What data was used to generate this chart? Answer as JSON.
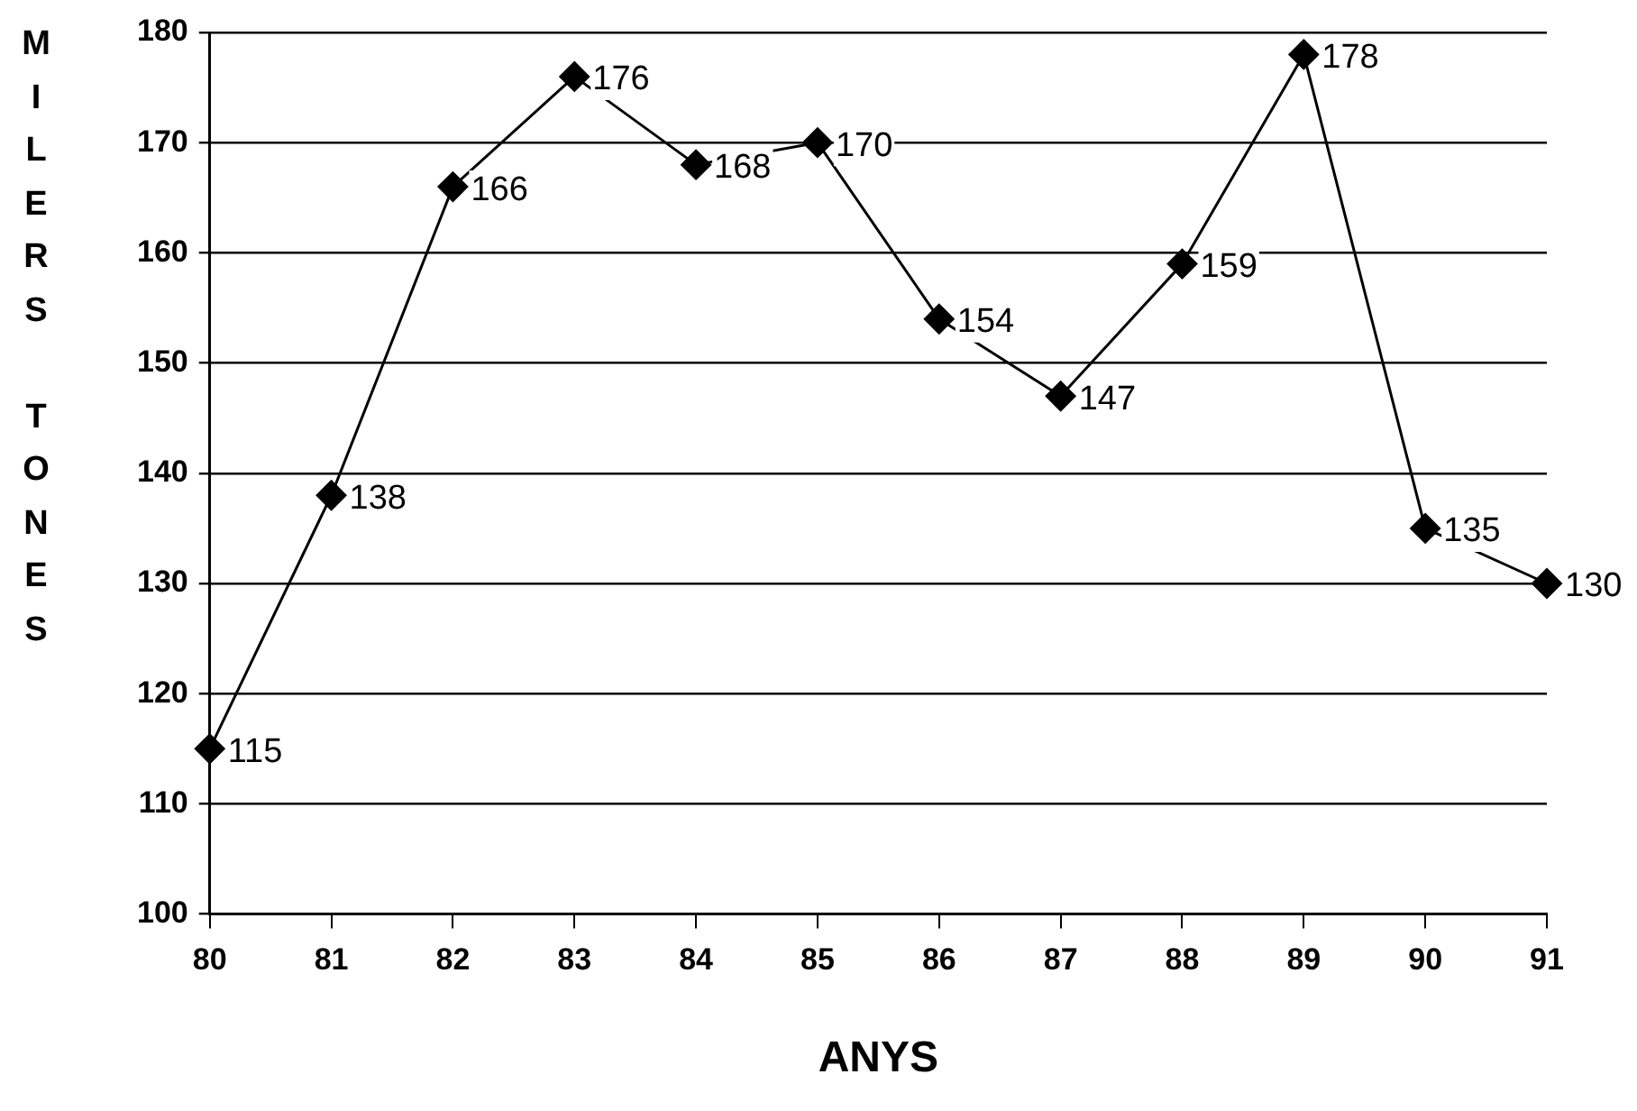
{
  "chart_data": {
    "type": "line",
    "ylabel": "MILERS TONES",
    "xlabel": "ANYS",
    "categories": [
      "80",
      "81",
      "82",
      "83",
      "84",
      "85",
      "86",
      "87",
      "88",
      "89",
      "90",
      "91"
    ],
    "series": [
      {
        "color": "#000000",
        "values": [
          115,
          138,
          166,
          176,
          168,
          170,
          154,
          147,
          159,
          178,
          135,
          130
        ]
      }
    ],
    "ylim": [
      100,
      180
    ],
    "yticks": [
      100,
      110,
      120,
      130,
      140,
      150,
      160,
      170,
      180
    ],
    "grid": "y",
    "legend": false,
    "marker": "diamond",
    "line_style": "solid",
    "data_labels": true
  }
}
